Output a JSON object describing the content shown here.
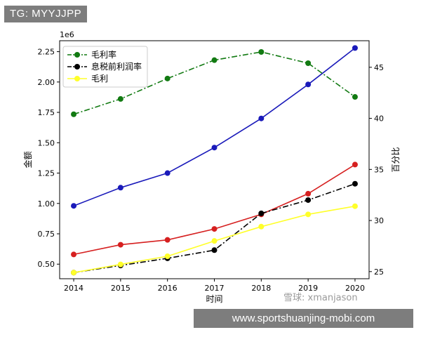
{
  "header": {
    "tag": "TG: MYYJJPP"
  },
  "footer": {
    "url": "www.sportshuanjing-mobi.com"
  },
  "watermark": {
    "text": "雪球: xmanjason"
  },
  "chart_data": {
    "type": "line",
    "x": [
      2014,
      2015,
      2016,
      2017,
      2018,
      2019,
      2020
    ],
    "xlabel": "时间",
    "ylabel_left": "金额",
    "ylabel_right": "百分比",
    "left_offset_label": "1e6",
    "ylim_left": [
      0.38,
      2.34
    ],
    "ylim_right": [
      24.3,
      47.6
    ],
    "yticks_left": [
      "0.50",
      "0.75",
      "1.00",
      "1.25",
      "1.50",
      "1.75",
      "2.00",
      "2.25"
    ],
    "yticks_right": [
      "25",
      "30",
      "35",
      "40",
      "45"
    ],
    "legend_position": "top-left",
    "grid": false,
    "series_left": [
      {
        "values": [
          0.98,
          1.13,
          1.25,
          1.46,
          1.7,
          1.98,
          2.28
        ],
        "color": "#1a1aba",
        "style": "solid"
      },
      {
        "values": [
          0.58,
          0.66,
          0.7,
          0.79,
          0.91,
          1.08,
          1.32
        ],
        "color": "#d62020",
        "style": "solid"
      }
    ],
    "series_right": [
      {
        "name": "毛利率",
        "values": [
          40.4,
          41.9,
          43.9,
          45.7,
          46.5,
          45.4,
          42.1
        ],
        "color": "#127a12",
        "style": "dashdot"
      },
      {
        "name": "息税前利润率",
        "values": [
          24.9,
          25.6,
          26.3,
          27.1,
          30.7,
          32.0,
          33.6
        ],
        "color": "#000000",
        "style": "dashdot"
      },
      {
        "name": "毛利",
        "values": [
          24.9,
          25.7,
          26.5,
          28.0,
          29.4,
          30.6,
          31.4
        ],
        "color": "#ffff2a",
        "style": "solid"
      }
    ]
  }
}
